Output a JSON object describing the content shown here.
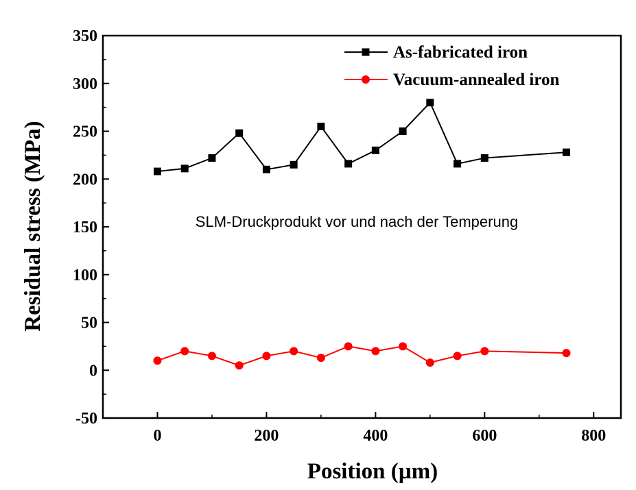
{
  "chart_data": {
    "type": "line",
    "title": "",
    "xlabel": "Position (µm)",
    "ylabel": "Residual stress (MPa)",
    "xlim": [
      -100,
      850
    ],
    "ylim": [
      -50,
      350
    ],
    "xticks": [
      0,
      200,
      400,
      600,
      800
    ],
    "yticks": [
      -50,
      0,
      50,
      100,
      150,
      200,
      250,
      300,
      350
    ],
    "legend_position": "top-right",
    "annotation": "SLM-Druckprodukt vor und nach der Temperung",
    "series": [
      {
        "name": "As-fabricated iron",
        "color": "#000000",
        "marker": "square",
        "x": [
          0,
          50,
          100,
          150,
          200,
          250,
          300,
          350,
          400,
          450,
          500,
          550,
          600,
          750
        ],
        "y": [
          208,
          211,
          222,
          248,
          210,
          215,
          255,
          216,
          230,
          250,
          280,
          216,
          222,
          228
        ]
      },
      {
        "name": "Vacuum-annealed iron",
        "color": "#ff0000",
        "marker": "circle",
        "x": [
          0,
          50,
          100,
          150,
          200,
          250,
          300,
          350,
          400,
          450,
          500,
          550,
          600,
          750
        ],
        "y": [
          10,
          20,
          15,
          5,
          15,
          20,
          13,
          25,
          20,
          25,
          8,
          15,
          20,
          18
        ]
      }
    ]
  }
}
